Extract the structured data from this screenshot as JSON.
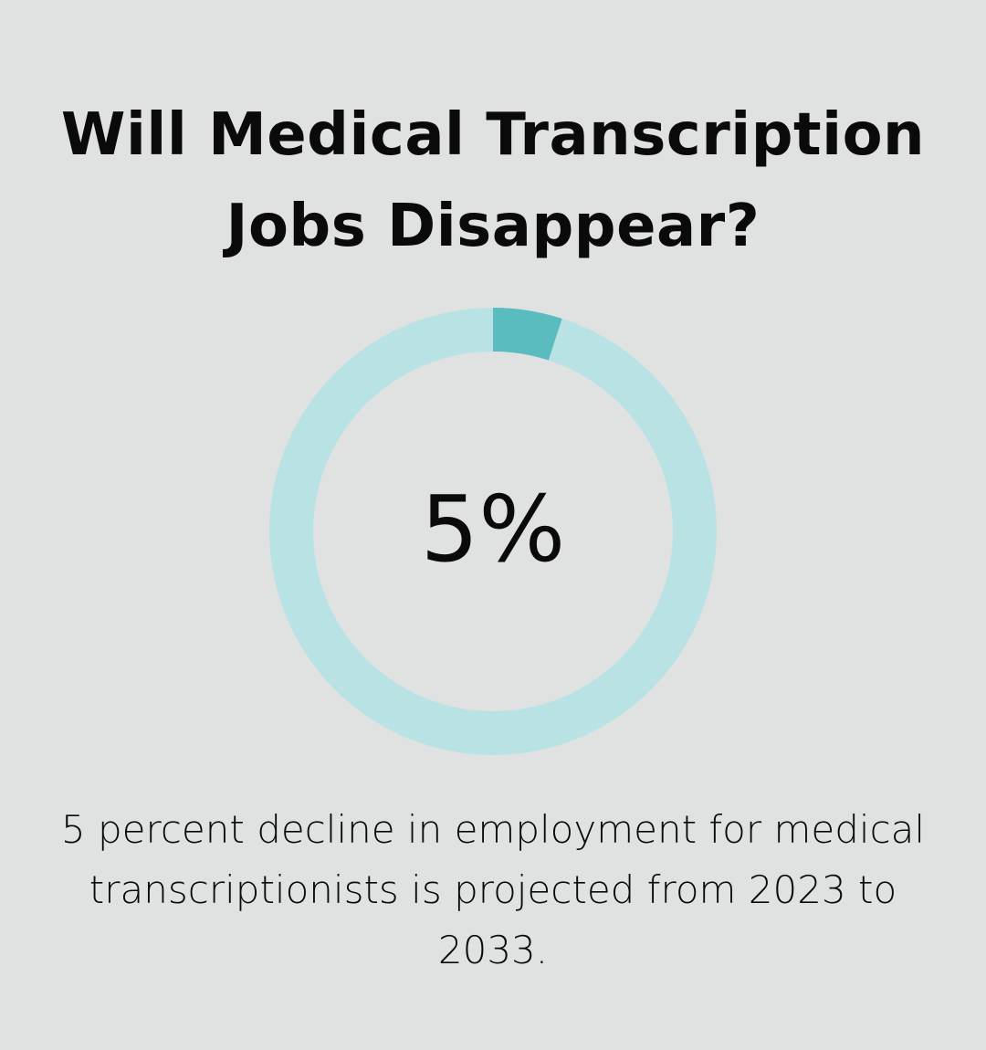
{
  "title": "Will Medical Transcription Jobs Disappear?",
  "center_label": "5%",
  "caption": "5 percent decline in employment for medical transcriptionists is projected from 2023 to 2033.",
  "colors": {
    "background": "#e0e2e1",
    "ring_track": "#b9e2e4",
    "ring_value": "#5bbcc0"
  },
  "chart_data": {
    "type": "pie",
    "variant": "donut",
    "values": [
      5,
      95
    ],
    "unit": "%",
    "colors": [
      "#5bbcc0",
      "#b9e2e4"
    ]
  }
}
